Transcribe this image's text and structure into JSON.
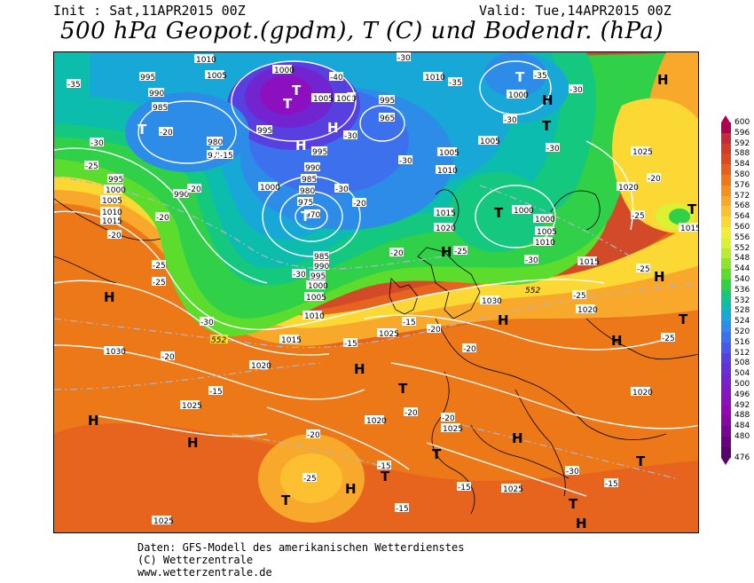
{
  "header": {
    "init": "Init : Sat,11APR2015 00Z",
    "valid": "Valid: Tue,14APR2015 00Z",
    "title": "500 hPa Geopot.(gpdm), T (C) und Bodendr. (hPa)"
  },
  "legend": {
    "values": [
      "600",
      "596",
      "592",
      "588",
      "584",
      "580",
      "576",
      "572",
      "568",
      "564",
      "560",
      "556",
      "552",
      "548",
      "544",
      "540",
      "536",
      "532",
      "528",
      "524",
      "520",
      "516",
      "512",
      "508",
      "504",
      "500",
      "496",
      "492",
      "488",
      "484",
      "480",
      "476"
    ],
    "colors": [
      "#b00050",
      "#c8283c",
      "#d23a2a",
      "#dc4a22",
      "#e4601c",
      "#ec7818",
      "#f29020",
      "#f8a82a",
      "#fcc030",
      "#fcd834",
      "#f4ec38",
      "#dcf034",
      "#b8ec30",
      "#8ce42c",
      "#5cdc2c",
      "#30d048",
      "#14c880",
      "#0cbcac",
      "#18a8d8",
      "#2c8ce8",
      "#3c70ec",
      "#4c58e8",
      "#5840e0",
      "#6430d8",
      "#7224d0",
      "#8018c8",
      "#8c10c0",
      "#9408b4",
      "#8806a4",
      "#780694",
      "#680480",
      "#58046c"
    ]
  },
  "map": {
    "pressure_labels": [
      "1010",
      "1005",
      "1000",
      "995",
      "990",
      "985",
      "980",
      "975",
      "970",
      "965",
      "1015",
      "1020",
      "1025",
      "1030"
    ],
    "temp_labels": [
      "-35",
      "-30",
      "-25",
      "-20",
      "-15",
      "-40"
    ],
    "geopot_labels": [
      "552"
    ],
    "highs_label": "H",
    "lows_label": "T"
  },
  "footer": {
    "line1": "Daten: GFS-Modell des amerikanischen Wetterdienstes",
    "line2": "(C) Wetterzentrale",
    "line3": "www.wetterzentrale.de"
  }
}
